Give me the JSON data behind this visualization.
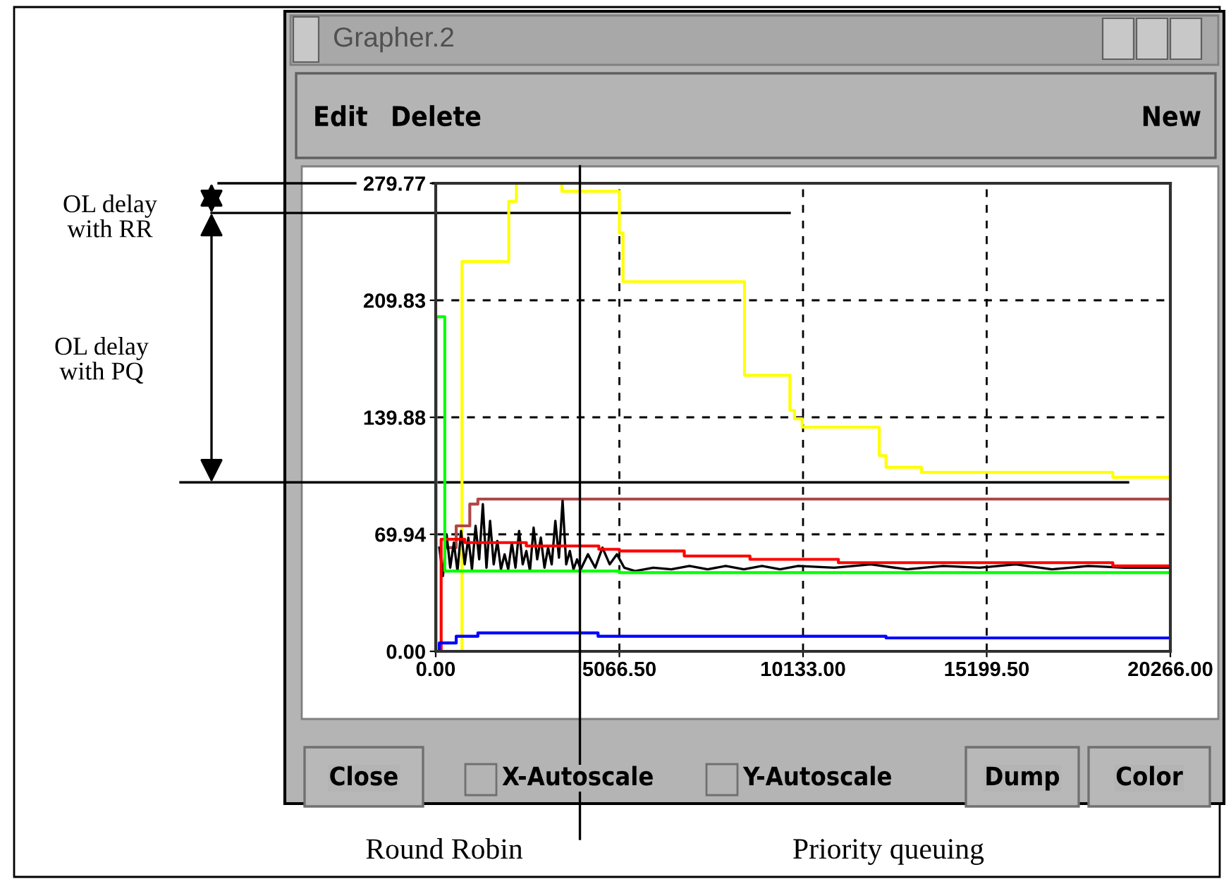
{
  "chart_data": {
    "type": "step",
    "title": "Grapher.2",
    "xlim": [
      0,
      20266
    ],
    "ylim": [
      0,
      279.77
    ],
    "xticks": [
      {
        "value": 0,
        "label": "0.00"
      },
      {
        "value": 5066.5,
        "label": "5066.50"
      },
      {
        "value": 10133,
        "label": "10133.00"
      },
      {
        "value": 15199.5,
        "label": "15199.50"
      },
      {
        "value": 20266,
        "label": "20266.00"
      }
    ],
    "yticks": [
      {
        "value": 0,
        "label": "0.00"
      },
      69.94,
      139.88,
      209.83,
      279.77
    ],
    "grid": true,
    "line_style": "solid",
    "series": [
      {
        "color": "#ffff00",
        "x": [
          0,
          725,
          2015,
          2227,
          3478,
          5066,
          5167,
          8519,
          9770,
          9896,
          10108,
          12235,
          12423,
          13398,
          18679,
          20266
        ],
        "values": [
          0,
          233,
          269,
          279.77,
          275,
          250,
          221,
          165,
          144,
          139,
          134,
          117,
          110,
          107,
          104,
          104
        ]
      },
      {
        "color": "#b04848",
        "x": [
          300,
          565,
          940,
          1163,
          20266
        ],
        "values": [
          62,
          75,
          88,
          91,
          91
        ]
      },
      {
        "type": "line",
        "color": "#000000",
        "x": [
          100,
          200,
          300,
          400,
          500,
          600,
          700,
          800,
          900,
          1000,
          1100,
          1200,
          1300,
          1400,
          1500,
          1600,
          1700,
          1800,
          1900,
          2000,
          2100,
          2200,
          2300,
          2400,
          2500,
          2600,
          2700,
          2800,
          2900,
          3000,
          3100,
          3200,
          3300,
          3400,
          3500,
          3600,
          3700,
          3800,
          3900,
          4000,
          4200,
          4400,
          4600,
          4800,
          5000,
          5200,
          5500,
          6000,
          6500,
          7000,
          7500,
          8000,
          8500,
          9000,
          9500,
          10000,
          11000,
          12000,
          13000,
          14000,
          15000,
          16000,
          17000,
          18000,
          19000,
          20266
        ],
        "values": [
          62,
          45,
          70,
          50,
          65,
          48,
          72,
          52,
          68,
          49,
          75,
          55,
          88,
          50,
          78,
          52,
          66,
          49,
          58,
          49,
          65,
          50,
          72,
          52,
          60,
          48,
          74,
          55,
          68,
          50,
          62,
          52,
          78,
          56,
          90,
          52,
          60,
          49,
          55,
          49,
          58,
          50,
          62,
          52,
          58,
          50,
          48,
          50,
          49,
          51,
          49,
          51,
          49,
          51,
          49,
          51,
          50,
          52,
          49,
          51,
          50,
          52,
          49,
          51,
          50,
          50
        ]
      },
      {
        "color": "#ff0000",
        "x": [
          0,
          150,
          800,
          2500,
          4500,
          5066,
          6856,
          8669,
          11109,
          18679,
          20266
        ],
        "values": [
          0,
          67,
          65,
          63,
          61,
          60,
          57,
          55,
          53,
          51,
          51
        ]
      },
      {
        "color": "#00ff00",
        "x": [
          0,
          10,
          250,
          5066,
          20266
        ],
        "values": [
          0,
          200,
          48,
          47,
          47
        ]
      },
      {
        "color": "#0000ff",
        "x": [
          0,
          100,
          565,
          1163,
          4478,
          12423,
          20266
        ],
        "values": [
          0,
          5,
          9,
          11,
          9,
          8,
          8
        ]
      }
    ],
    "ref_lines": [
      {
        "axis": "y",
        "value": 279.77
      },
      {
        "axis": "y",
        "value": 262
      },
      {
        "axis": "y",
        "value": 101
      },
      {
        "axis": "x",
        "value": 3978
      }
    ],
    "annotations": [
      "OL delay\nwith RR",
      "OL delay\nwith PQ",
      "Round Robin",
      "Priority queuing",
      "Edit",
      "Delete",
      "New",
      "Close",
      "X-Autoscale",
      "Y-Autoscale",
      "Dump",
      "Color"
    ]
  }
}
